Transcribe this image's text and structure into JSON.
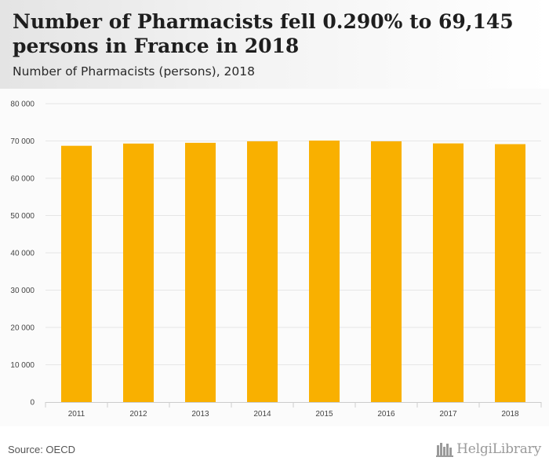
{
  "header": {
    "title": "Number of Pharmacists fell 0.290% to 69,145 persons in France in 2018",
    "subtitle": "Number of Pharmacists (persons), 2018"
  },
  "footer": {
    "source": "Source: OECD",
    "brand": "HelgiLibrary"
  },
  "colors": {
    "bar": "#f9b000",
    "grid": "#e6e6e6",
    "axis": "#cccccc",
    "tick_text": "#444444"
  },
  "chart_data": {
    "type": "bar",
    "categories": [
      "2011",
      "2012",
      "2013",
      "2014",
      "2015",
      "2016",
      "2017",
      "2018"
    ],
    "values": [
      68700,
      69300,
      69500,
      69900,
      70100,
      69900,
      69345,
      69145
    ],
    "yticks": [
      0,
      10000,
      20000,
      30000,
      40000,
      50000,
      60000,
      70000,
      80000
    ],
    "ytick_labels": [
      "0",
      "10 000",
      "20 000",
      "30 000",
      "40 000",
      "50 000",
      "60 000",
      "70 000",
      "80 000"
    ],
    "ylim": [
      0,
      80000
    ],
    "grid": true,
    "legend": false
  }
}
